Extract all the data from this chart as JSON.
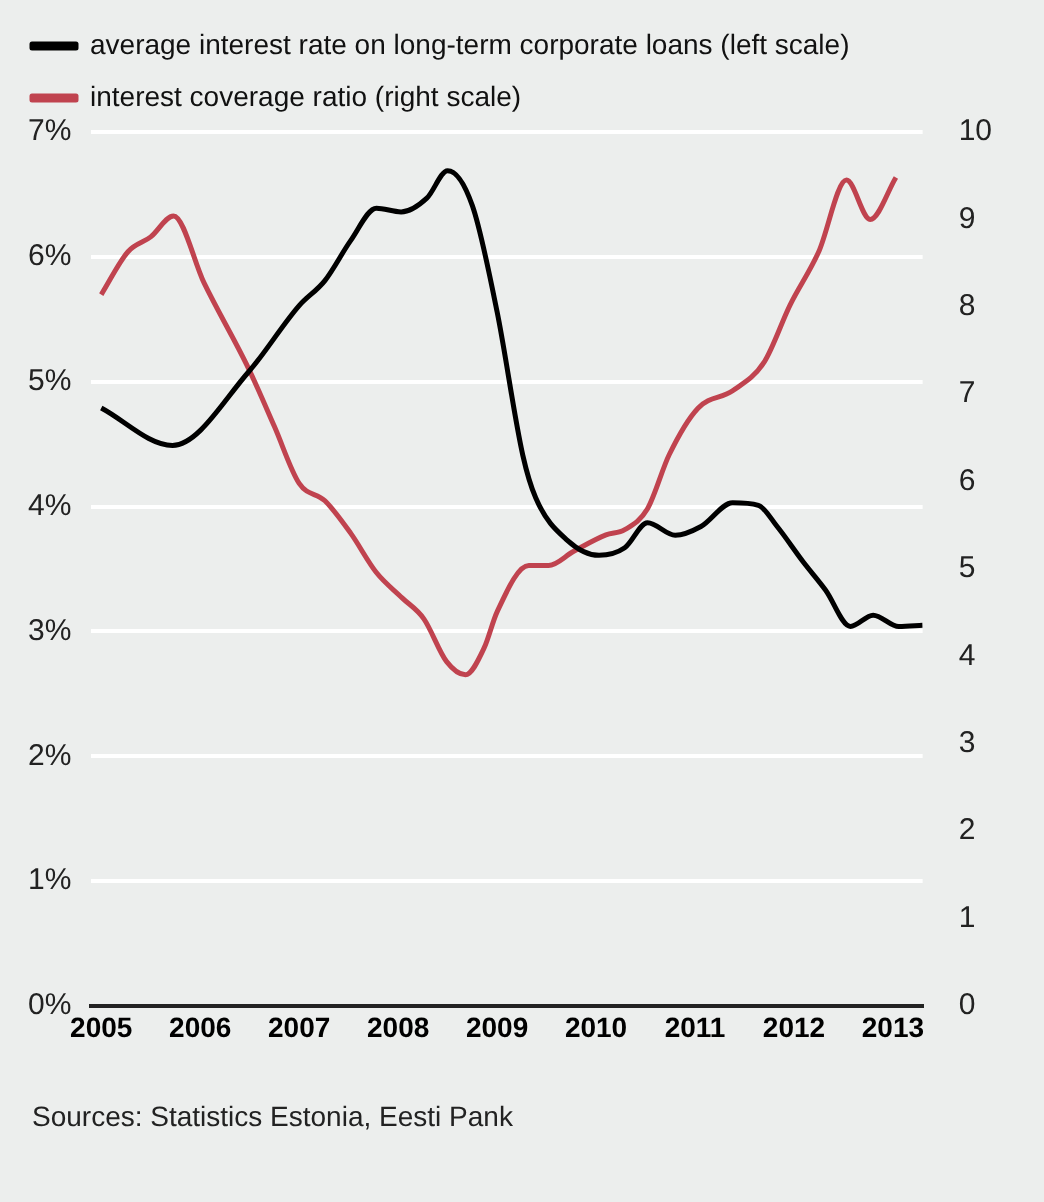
{
  "chart_data": {
    "type": "line",
    "annotations": [
      "Sources: Statistics Estonia, Eesti Pank"
    ],
    "xlim": [
      2004.9,
      2013.3
    ],
    "xticks": [
      2005,
      2006,
      2007,
      2008,
      2009,
      2010,
      2011,
      2012,
      2013
    ],
    "ylim": [
      0,
      7
    ],
    "yticks": [
      {
        "value": 0,
        "label": "0%"
      },
      {
        "value": 1,
        "label": "1%"
      },
      {
        "value": 2,
        "label": "2%"
      },
      {
        "value": 3,
        "label": "3%"
      },
      {
        "value": 4,
        "label": "4%"
      },
      {
        "value": 5,
        "label": "5%"
      },
      {
        "value": 6,
        "label": "6%"
      },
      {
        "value": 7,
        "label": "7%"
      }
    ],
    "y2lim": [
      0,
      10
    ],
    "y2ticks": [
      0,
      1,
      2,
      3,
      4,
      5,
      6,
      7,
      8,
      9,
      10
    ],
    "grid": "y",
    "legend": "top left",
    "marker": "none",
    "line_style": "solid",
    "series": [
      {
        "name": "average interest rate on long-term corporate loans (left scale)",
        "color": "#000000",
        "x": [
          2005,
          2005.72,
          2006.49,
          2007.0,
          2007.26,
          2007.52,
          2007.78,
          2008.03,
          2008.29,
          2008.5,
          2008.75,
          2009.0,
          2009.26,
          2009.39,
          2009.71,
          2010.03,
          2010.29,
          2010.52,
          2010.8,
          2011.06,
          2011.38,
          2011.64,
          2011.83,
          2012.09,
          2012.32,
          2012.57,
          2012.8,
          2013.06,
          2013.3
        ],
        "values": [
          4.79,
          4.49,
          5.08,
          5.61,
          5.81,
          6.13,
          6.39,
          6.36,
          6.47,
          6.69,
          6.41,
          5.56,
          4.41,
          4.07,
          3.73,
          3.61,
          3.67,
          3.87,
          3.77,
          3.84,
          4.03,
          4.01,
          3.84,
          3.56,
          3.33,
          3.04,
          3.13,
          3.04,
          3.05
        ]
      },
      {
        "name": "interest coverage ratio (right scale)",
        "color": "#c0434f",
        "axis": "y2",
        "x": [
          2005,
          2005.27,
          2005.5,
          2005.73,
          2006.04,
          2006.49,
          2006.75,
          2007.0,
          2007.26,
          2007.52,
          2007.78,
          2008.04,
          2008.26,
          2008.49,
          2008.68,
          2008.87,
          2009.0,
          2009.32,
          2009.52,
          2009.77,
          2010.1,
          2010.29,
          2010.52,
          2010.74,
          2011.03,
          2011.38,
          2011.7,
          2011.96,
          2012.25,
          2012.53,
          2012.77,
          2013.03
        ],
        "values": [
          8.14,
          8.63,
          8.8,
          9.04,
          8.27,
          7.29,
          6.63,
          5.98,
          5.78,
          5.41,
          4.96,
          4.67,
          4.43,
          3.94,
          3.79,
          4.1,
          4.51,
          5.04,
          5.04,
          5.2,
          5.39,
          5.45,
          5.69,
          6.31,
          6.84,
          7.04,
          7.37,
          8.02,
          8.63,
          9.45,
          9.0,
          9.48
        ]
      }
    ]
  }
}
